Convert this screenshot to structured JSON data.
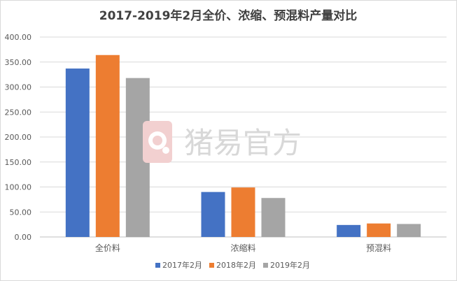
{
  "chart_data": {
    "type": "bar",
    "title": "2017-2019年2月全价、浓缩、预混料产量对比",
    "categories": [
      "全价料",
      "浓缩料",
      "预混料"
    ],
    "series": [
      {
        "name": "2017年2月",
        "values": [
          337,
          90,
          24
        ],
        "color": "#4472c4"
      },
      {
        "name": "2018年2月",
        "values": [
          364,
          99,
          27
        ],
        "color": "#ed7d31"
      },
      {
        "name": "2019年2月",
        "values": [
          318,
          78,
          26
        ],
        "color": "#a5a5a5"
      }
    ],
    "ylim": [
      0,
      400
    ],
    "yticks": [
      "0.00",
      "50.00",
      "100.00",
      "150.00",
      "200.00",
      "250.00",
      "300.00",
      "350.00",
      "400.00"
    ],
    "xlabel": "",
    "ylabel": "",
    "grid": true,
    "legend_position": "bottom"
  },
  "watermark": {
    "text": "猪易官方",
    "icon": "pig-logo-icon",
    "color": "#e8b3b3"
  }
}
